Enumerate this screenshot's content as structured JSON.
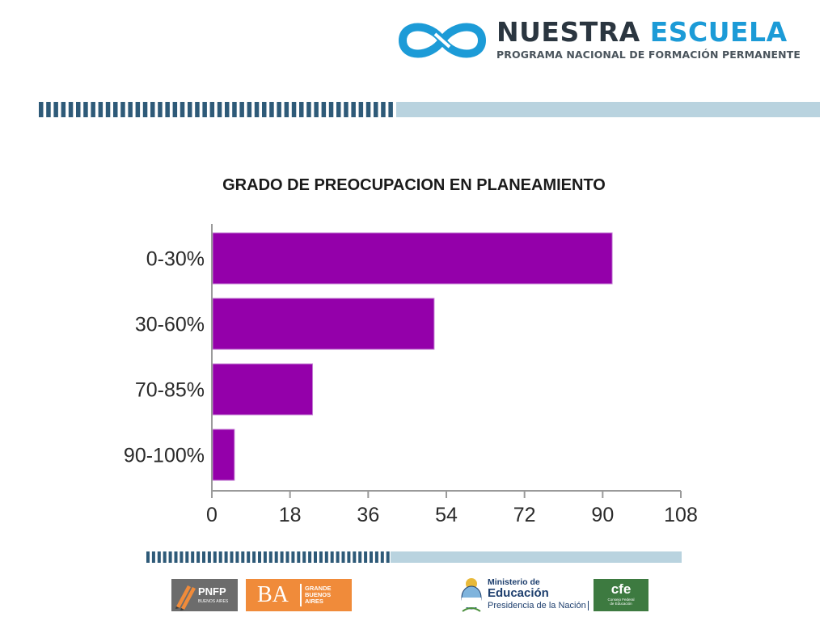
{
  "header": {
    "brand_word1": "NUESTRA",
    "brand_word2": "ESCUELA",
    "brand_subtitle": "PROGRAMA NACIONAL DE FORMACIÓN PERMANENTE"
  },
  "colors": {
    "bar": "#9400aa",
    "brand_blue": "#1c9bd7",
    "brand_dark": "#2b3640",
    "stripe_dash": "#2e5a78",
    "stripe_light": "#b9d3df"
  },
  "chart_data": {
    "type": "bar",
    "orientation": "horizontal",
    "title": "GRADO DE PREOCUPACION  EN PLANEAMIENTO",
    "categories": [
      "0-30%",
      "30-60%",
      "70-85%",
      "90-100%"
    ],
    "values": [
      92,
      51,
      23,
      5
    ],
    "xlim": [
      0,
      108
    ],
    "xticks": [
      "0",
      "18",
      "36",
      "54",
      "72",
      "90",
      "108"
    ],
    "xlabel": "",
    "ylabel": "",
    "grid": false,
    "legend": "none"
  },
  "footer": {
    "pnfp_title": "PNFP",
    "pnfp_sub": "BUENOS AIRES",
    "ba_title": "BA",
    "ba_sub1": "GRANDE",
    "ba_sub2": "BUENOS",
    "ba_sub3": "AIRES",
    "ministry_line1": "Ministerio de",
    "ministry_line2": "Educación",
    "ministry_line3": "Presidencia de la Nación",
    "cfe_title": "cfe",
    "cfe_sub1": "Consejo Federal",
    "cfe_sub2": "de Educación"
  }
}
